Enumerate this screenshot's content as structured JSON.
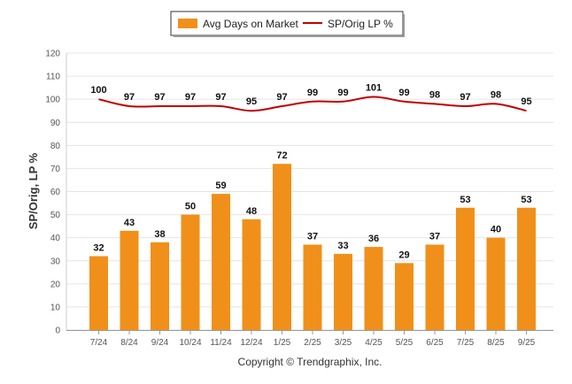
{
  "chart_data": {
    "type": "bar",
    "categories": [
      "7/24",
      "8/24",
      "9/24",
      "10/24",
      "11/24",
      "12/24",
      "1/25",
      "2/25",
      "3/25",
      "4/25",
      "5/25",
      "6/25",
      "7/25",
      "8/25",
      "9/25"
    ],
    "series": [
      {
        "name": "Avg Days on Market",
        "type": "bar",
        "color": "#f0901a",
        "values": [
          32,
          43,
          38,
          50,
          59,
          48,
          72,
          37,
          33,
          36,
          29,
          37,
          53,
          40,
          53
        ]
      },
      {
        "name": "SP/Orig LP %",
        "type": "line",
        "color": "#c00000",
        "values": [
          100,
          97,
          97,
          97,
          97,
          95,
          97,
          99,
          99,
          101,
          99,
          98,
          97,
          98,
          95
        ]
      }
    ],
    "ylabel": "SP/Orig, LP %",
    "yticks": [
      0,
      10,
      20,
      30,
      40,
      50,
      60,
      70,
      80,
      90,
      100,
      110,
      120
    ],
    "ylim": [
      0,
      120
    ],
    "grid": true,
    "legend_position": "top-center",
    "credit": "Copyright © Trendgraphix, Inc."
  }
}
